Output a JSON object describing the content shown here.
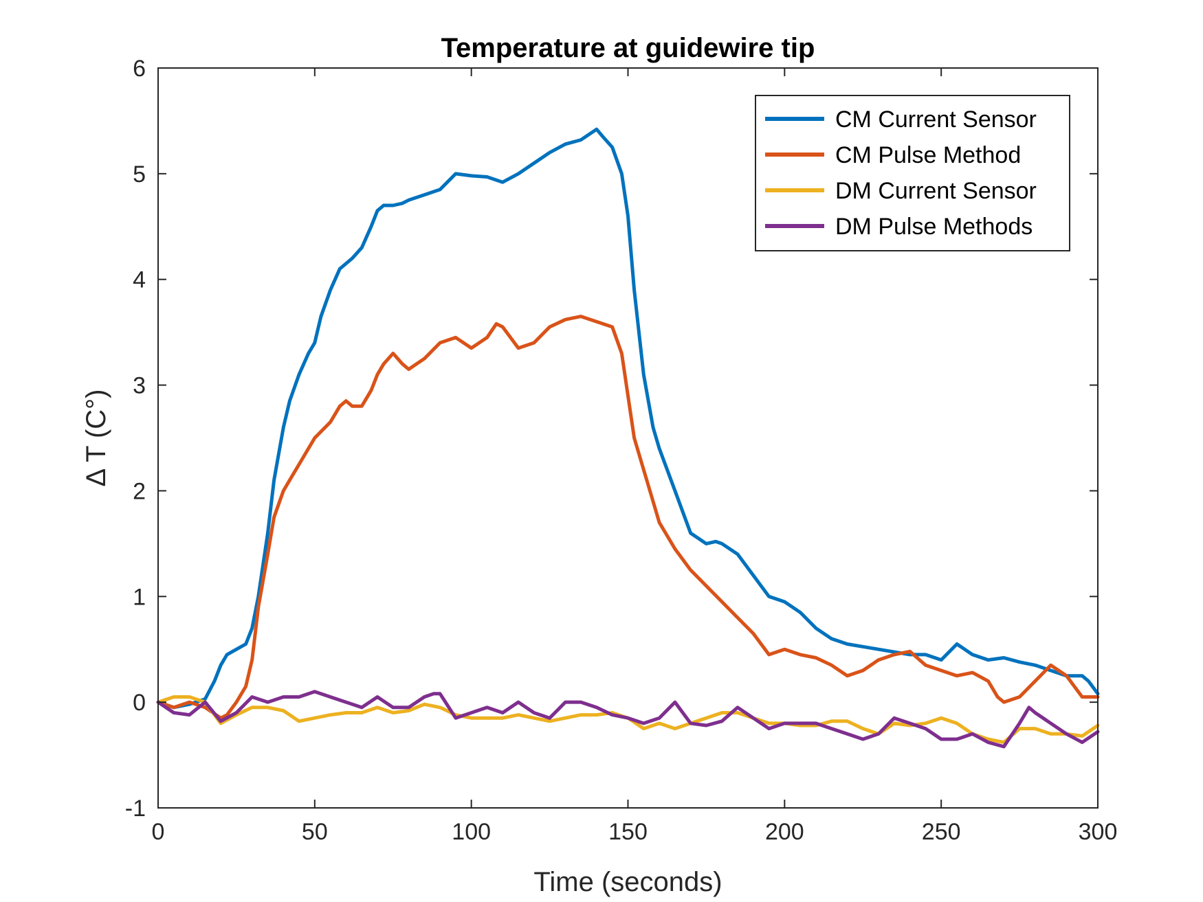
{
  "chart_data": {
    "type": "line",
    "title": "Temperature at guidewire tip",
    "xlabel": "Time (seconds)",
    "ylabel": "Δ T (C°)",
    "xlim": [
      0,
      300
    ],
    "ylim": [
      -1,
      6
    ],
    "xticks": [
      0,
      50,
      100,
      150,
      200,
      250,
      300
    ],
    "yticks": [
      -1,
      0,
      1,
      2,
      3,
      4,
      5,
      6
    ],
    "legend_position": "top-right",
    "grid": false,
    "series": [
      {
        "name": "CM Current Sensor",
        "color": "#0072BD",
        "x": [
          0,
          5,
          10,
          15,
          18,
          20,
          22,
          25,
          28,
          30,
          32,
          35,
          37,
          40,
          42,
          45,
          48,
          50,
          52,
          55,
          58,
          60,
          62,
          65,
          68,
          70,
          72,
          75,
          78,
          80,
          85,
          90,
          95,
          100,
          105,
          110,
          115,
          120,
          125,
          130,
          135,
          140,
          142,
          145,
          148,
          150,
          152,
          155,
          158,
          160,
          165,
          170,
          175,
          178,
          180,
          185,
          190,
          195,
          200,
          205,
          210,
          215,
          220,
          230,
          240,
          245,
          250,
          255,
          260,
          265,
          270,
          275,
          280,
          285,
          290,
          295,
          297,
          300
        ],
        "y": [
          0.0,
          -0.05,
          -0.02,
          0.03,
          0.2,
          0.35,
          0.45,
          0.5,
          0.55,
          0.7,
          1.0,
          1.6,
          2.1,
          2.6,
          2.85,
          3.1,
          3.3,
          3.4,
          3.65,
          3.9,
          4.1,
          4.15,
          4.2,
          4.3,
          4.5,
          4.65,
          4.7,
          4.7,
          4.72,
          4.75,
          4.8,
          4.85,
          5.0,
          4.98,
          4.97,
          4.92,
          5.0,
          5.1,
          5.2,
          5.28,
          5.32,
          5.42,
          5.35,
          5.25,
          5.0,
          4.6,
          3.9,
          3.1,
          2.6,
          2.4,
          2.0,
          1.6,
          1.5,
          1.52,
          1.5,
          1.4,
          1.2,
          1.0,
          0.95,
          0.85,
          0.7,
          0.6,
          0.55,
          0.5,
          0.45,
          0.45,
          0.4,
          0.55,
          0.45,
          0.4,
          0.42,
          0.38,
          0.35,
          0.3,
          0.25,
          0.25,
          0.2,
          0.08
        ]
      },
      {
        "name": "CM Pulse Method",
        "color": "#D95319",
        "x": [
          0,
          5,
          10,
          15,
          20,
          22,
          25,
          28,
          30,
          32,
          35,
          37,
          40,
          43,
          45,
          48,
          50,
          55,
          58,
          60,
          62,
          65,
          68,
          70,
          72,
          75,
          78,
          80,
          85,
          90,
          95,
          100,
          105,
          108,
          110,
          115,
          120,
          125,
          130,
          135,
          140,
          145,
          148,
          150,
          152,
          155,
          158,
          160,
          165,
          170,
          175,
          180,
          185,
          190,
          195,
          200,
          205,
          210,
          215,
          220,
          225,
          230,
          235,
          240,
          245,
          250,
          255,
          260,
          265,
          268,
          270,
          275,
          280,
          285,
          290,
          295,
          300
        ],
        "y": [
          0.0,
          -0.05,
          0.0,
          -0.05,
          -0.15,
          -0.12,
          0.0,
          0.15,
          0.4,
          0.9,
          1.4,
          1.75,
          2.0,
          2.15,
          2.25,
          2.4,
          2.5,
          2.65,
          2.8,
          2.85,
          2.8,
          2.8,
          2.95,
          3.1,
          3.2,
          3.3,
          3.2,
          3.15,
          3.25,
          3.4,
          3.45,
          3.35,
          3.45,
          3.58,
          3.55,
          3.35,
          3.4,
          3.55,
          3.62,
          3.65,
          3.6,
          3.55,
          3.3,
          2.9,
          2.5,
          2.2,
          1.9,
          1.7,
          1.45,
          1.25,
          1.1,
          0.95,
          0.8,
          0.65,
          0.45,
          0.5,
          0.45,
          0.42,
          0.35,
          0.25,
          0.3,
          0.4,
          0.45,
          0.48,
          0.35,
          0.3,
          0.25,
          0.28,
          0.2,
          0.05,
          0.0,
          0.05,
          0.2,
          0.35,
          0.25,
          0.05,
          0.05
        ]
      },
      {
        "name": "DM Current Sensor",
        "color": "#EDB120",
        "x": [
          0,
          5,
          10,
          15,
          20,
          25,
          30,
          35,
          40,
          45,
          50,
          55,
          60,
          65,
          70,
          75,
          80,
          85,
          90,
          95,
          100,
          105,
          110,
          115,
          120,
          125,
          130,
          135,
          140,
          145,
          150,
          155,
          160,
          165,
          170,
          175,
          180,
          185,
          190,
          195,
          200,
          205,
          210,
          215,
          220,
          225,
          230,
          235,
          240,
          245,
          250,
          255,
          260,
          265,
          270,
          275,
          280,
          285,
          290,
          295,
          300
        ],
        "y": [
          0.0,
          0.05,
          0.05,
          0.0,
          -0.2,
          -0.12,
          -0.05,
          -0.05,
          -0.08,
          -0.18,
          -0.15,
          -0.12,
          -0.1,
          -0.1,
          -0.05,
          -0.1,
          -0.08,
          -0.02,
          -0.05,
          -0.12,
          -0.15,
          -0.15,
          -0.15,
          -0.12,
          -0.15,
          -0.18,
          -0.15,
          -0.12,
          -0.12,
          -0.1,
          -0.15,
          -0.25,
          -0.2,
          -0.25,
          -0.2,
          -0.15,
          -0.1,
          -0.1,
          -0.15,
          -0.2,
          -0.2,
          -0.22,
          -0.22,
          -0.18,
          -0.18,
          -0.25,
          -0.3,
          -0.2,
          -0.22,
          -0.2,
          -0.15,
          -0.2,
          -0.3,
          -0.35,
          -0.38,
          -0.25,
          -0.25,
          -0.3,
          -0.3,
          -0.32,
          -0.22
        ]
      },
      {
        "name": "DM Pulse Methods",
        "color": "#7E2F8E",
        "x": [
          0,
          5,
          10,
          15,
          20,
          25,
          30,
          35,
          40,
          45,
          50,
          55,
          60,
          65,
          70,
          75,
          80,
          85,
          88,
          90,
          95,
          100,
          105,
          110,
          115,
          120,
          125,
          130,
          135,
          140,
          145,
          150,
          155,
          160,
          165,
          170,
          175,
          180,
          185,
          190,
          195,
          200,
          205,
          210,
          215,
          220,
          225,
          230,
          235,
          240,
          245,
          250,
          255,
          260,
          265,
          270,
          275,
          278,
          280,
          285,
          290,
          295,
          300
        ],
        "y": [
          0.0,
          -0.1,
          -0.12,
          0.0,
          -0.18,
          -0.1,
          0.05,
          0.0,
          0.05,
          0.05,
          0.1,
          0.05,
          0.0,
          -0.05,
          0.05,
          -0.05,
          -0.05,
          0.05,
          0.08,
          0.08,
          -0.15,
          -0.1,
          -0.05,
          -0.1,
          0.0,
          -0.1,
          -0.15,
          0.0,
          0.0,
          -0.05,
          -0.12,
          -0.15,
          -0.2,
          -0.15,
          0.0,
          -0.2,
          -0.22,
          -0.18,
          -0.05,
          -0.15,
          -0.25,
          -0.2,
          -0.2,
          -0.2,
          -0.25,
          -0.3,
          -0.35,
          -0.3,
          -0.15,
          -0.2,
          -0.25,
          -0.35,
          -0.35,
          -0.3,
          -0.38,
          -0.42,
          -0.2,
          -0.05,
          -0.1,
          -0.2,
          -0.3,
          -0.38,
          -0.28
        ]
      }
    ]
  }
}
